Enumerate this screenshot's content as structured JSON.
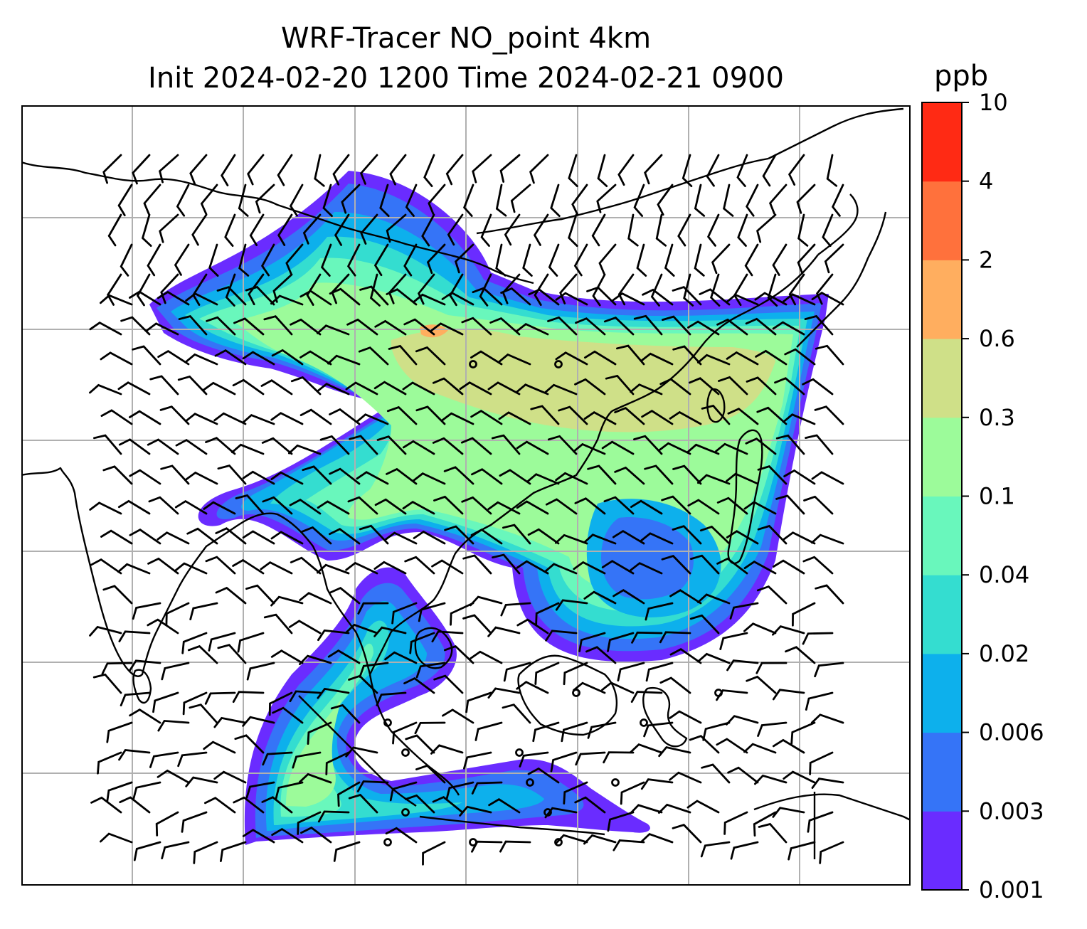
{
  "title": {
    "line1": "WRF-Tracer NO_point 4km",
    "line2": "Init 2024-02-20 1200 Time 2024-02-21 0900"
  },
  "colorbar": {
    "unit": "ppb",
    "ticks": [
      "10",
      "4",
      "2",
      "0.6",
      "0.3",
      "0.1",
      "0.04",
      "0.02",
      "0.006",
      "0.003",
      "0.001"
    ],
    "colors": [
      "#6a2cff",
      "#3574f7",
      "#0db0ec",
      "#34ddd0",
      "#69f7bc",
      "#9cfb9a",
      "#cfe088",
      "#ffae5f",
      "#ff713c",
      "#ff2a14"
    ]
  },
  "map": {
    "gridlines": true,
    "coastline_color": "#000000",
    "gridline_color": "#b0b0b0",
    "plume_levels": [
      "0.001",
      "0.003",
      "0.006",
      "0.02",
      "0.04",
      "0.1",
      "0.3",
      "0.6"
    ],
    "wind_barbs": "black",
    "calm_markers": "open circles"
  }
}
